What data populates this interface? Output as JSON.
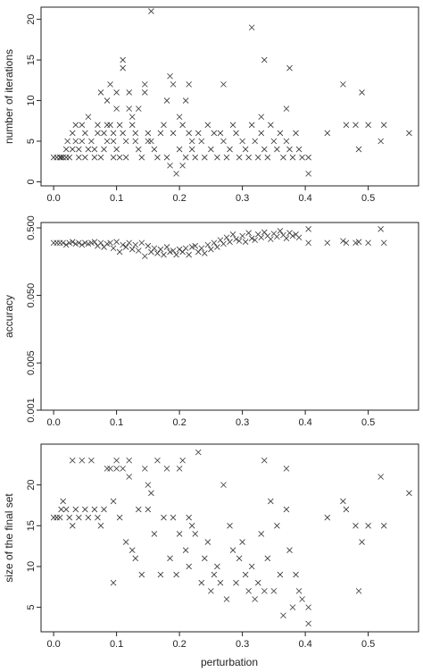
{
  "chart_data": [
    {
      "type": "scatter",
      "xlabel": "",
      "ylabel": "number of iterations",
      "xlim": [
        -0.02,
        0.58
      ],
      "ylim": [
        -0.5,
        21.5
      ],
      "yscale": "linear",
      "x_ticks": [
        "0.0",
        "0.1",
        "0.2",
        "0.3",
        "0.4",
        "0.5"
      ],
      "y_ticks": [
        "0",
        "5",
        "10",
        "15",
        "20"
      ],
      "marker": "x",
      "points": [
        [
          0.0,
          3
        ],
        [
          0.005,
          3
        ],
        [
          0.01,
          3
        ],
        [
          0.012,
          3
        ],
        [
          0.015,
          3
        ],
        [
          0.02,
          3
        ],
        [
          0.02,
          4
        ],
        [
          0.022,
          5
        ],
        [
          0.025,
          3
        ],
        [
          0.03,
          4
        ],
        [
          0.03,
          6
        ],
        [
          0.035,
          7
        ],
        [
          0.035,
          5
        ],
        [
          0.04,
          3
        ],
        [
          0.04,
          4
        ],
        [
          0.045,
          7
        ],
        [
          0.045,
          5
        ],
        [
          0.05,
          3
        ],
        [
          0.05,
          6
        ],
        [
          0.055,
          8
        ],
        [
          0.055,
          4
        ],
        [
          0.06,
          5
        ],
        [
          0.065,
          3
        ],
        [
          0.065,
          4
        ],
        [
          0.07,
          6
        ],
        [
          0.07,
          7
        ],
        [
          0.075,
          3
        ],
        [
          0.075,
          11
        ],
        [
          0.08,
          6
        ],
        [
          0.08,
          4
        ],
        [
          0.085,
          10
        ],
        [
          0.085,
          7
        ],
        [
          0.085,
          5
        ],
        [
          0.09,
          12
        ],
        [
          0.09,
          7
        ],
        [
          0.095,
          3
        ],
        [
          0.095,
          6
        ],
        [
          0.095,
          5
        ],
        [
          0.1,
          4
        ],
        [
          0.1,
          9
        ],
        [
          0.1,
          11
        ],
        [
          0.105,
          3
        ],
        [
          0.105,
          7
        ],
        [
          0.11,
          14
        ],
        [
          0.11,
          15
        ],
        [
          0.11,
          6
        ],
        [
          0.115,
          3
        ],
        [
          0.115,
          5
        ],
        [
          0.12,
          9
        ],
        [
          0.12,
          11
        ],
        [
          0.125,
          8
        ],
        [
          0.125,
          7
        ],
        [
          0.13,
          5
        ],
        [
          0.13,
          6
        ],
        [
          0.135,
          9
        ],
        [
          0.135,
          4
        ],
        [
          0.14,
          3
        ],
        [
          0.145,
          11
        ],
        [
          0.145,
          12
        ],
        [
          0.15,
          5
        ],
        [
          0.15,
          6
        ],
        [
          0.155,
          21
        ],
        [
          0.155,
          5
        ],
        [
          0.16,
          4
        ],
        [
          0.165,
          3
        ],
        [
          0.17,
          6
        ],
        [
          0.175,
          7
        ],
        [
          0.18,
          10
        ],
        [
          0.18,
          3
        ],
        [
          0.185,
          13
        ],
        [
          0.185,
          2
        ],
        [
          0.19,
          12
        ],
        [
          0.19,
          6
        ],
        [
          0.195,
          1
        ],
        [
          0.2,
          8
        ],
        [
          0.2,
          4
        ],
        [
          0.205,
          7
        ],
        [
          0.205,
          2
        ],
        [
          0.21,
          10
        ],
        [
          0.21,
          3
        ],
        [
          0.215,
          12
        ],
        [
          0.215,
          6
        ],
        [
          0.22,
          5
        ],
        [
          0.22,
          4
        ],
        [
          0.225,
          3
        ],
        [
          0.23,
          6
        ],
        [
          0.235,
          5
        ],
        [
          0.24,
          3
        ],
        [
          0.245,
          7
        ],
        [
          0.25,
          4
        ],
        [
          0.255,
          6
        ],
        [
          0.26,
          3
        ],
        [
          0.265,
          6
        ],
        [
          0.27,
          12
        ],
        [
          0.27,
          5
        ],
        [
          0.275,
          3
        ],
        [
          0.28,
          4
        ],
        [
          0.285,
          7
        ],
        [
          0.29,
          6
        ],
        [
          0.295,
          3
        ],
        [
          0.3,
          5
        ],
        [
          0.305,
          4
        ],
        [
          0.31,
          3
        ],
        [
          0.315,
          19
        ],
        [
          0.315,
          7
        ],
        [
          0.32,
          5
        ],
        [
          0.325,
          3
        ],
        [
          0.33,
          8
        ],
        [
          0.33,
          6
        ],
        [
          0.335,
          15
        ],
        [
          0.335,
          4
        ],
        [
          0.34,
          3
        ],
        [
          0.345,
          7
        ],
        [
          0.35,
          5
        ],
        [
          0.355,
          4
        ],
        [
          0.36,
          6
        ],
        [
          0.365,
          3
        ],
        [
          0.37,
          9
        ],
        [
          0.37,
          5
        ],
        [
          0.375,
          14
        ],
        [
          0.375,
          4
        ],
        [
          0.38,
          3
        ],
        [
          0.385,
          6
        ],
        [
          0.39,
          4
        ],
        [
          0.395,
          3
        ],
        [
          0.405,
          1
        ],
        [
          0.405,
          3
        ],
        [
          0.435,
          6
        ],
        [
          0.46,
          12
        ],
        [
          0.465,
          7
        ],
        [
          0.48,
          7
        ],
        [
          0.485,
          4
        ],
        [
          0.49,
          11
        ],
        [
          0.5,
          7
        ],
        [
          0.52,
          5
        ],
        [
          0.525,
          7
        ],
        [
          0.565,
          6
        ]
      ]
    },
    {
      "type": "scatter",
      "xlabel": "",
      "ylabel": "accuracy",
      "xlim": [
        -0.02,
        0.58
      ],
      "ylim": [
        0.001,
        0.6
      ],
      "yscale": "log",
      "x_ticks": [
        "0.0",
        "0.1",
        "0.2",
        "0.3",
        "0.4",
        "0.5"
      ],
      "y_ticks": [
        "0.001",
        "0.005",
        "0.050",
        "0.500"
      ],
      "y_tick_values": [
        0.001,
        0.005,
        0.05,
        0.5
      ],
      "marker": "x",
      "points": [
        [
          0.0,
          0.3
        ],
        [
          0.005,
          0.3
        ],
        [
          0.01,
          0.3
        ],
        [
          0.015,
          0.3
        ],
        [
          0.02,
          0.28
        ],
        [
          0.025,
          0.3
        ],
        [
          0.03,
          0.31
        ],
        [
          0.035,
          0.29
        ],
        [
          0.04,
          0.3
        ],
        [
          0.045,
          0.28
        ],
        [
          0.05,
          0.3
        ],
        [
          0.055,
          0.29
        ],
        [
          0.06,
          0.3
        ],
        [
          0.065,
          0.31
        ],
        [
          0.07,
          0.27
        ],
        [
          0.075,
          0.3
        ],
        [
          0.08,
          0.26
        ],
        [
          0.085,
          0.29
        ],
        [
          0.09,
          0.3
        ],
        [
          0.095,
          0.25
        ],
        [
          0.1,
          0.31
        ],
        [
          0.105,
          0.22
        ],
        [
          0.11,
          0.28
        ],
        [
          0.115,
          0.26
        ],
        [
          0.12,
          0.3
        ],
        [
          0.125,
          0.24
        ],
        [
          0.13,
          0.28
        ],
        [
          0.135,
          0.23
        ],
        [
          0.14,
          0.3
        ],
        [
          0.145,
          0.19
        ],
        [
          0.15,
          0.27
        ],
        [
          0.155,
          0.22
        ],
        [
          0.16,
          0.25
        ],
        [
          0.165,
          0.21
        ],
        [
          0.17,
          0.24
        ],
        [
          0.175,
          0.2
        ],
        [
          0.18,
          0.26
        ],
        [
          0.185,
          0.22
        ],
        [
          0.19,
          0.23
        ],
        [
          0.195,
          0.2
        ],
        [
          0.2,
          0.24
        ],
        [
          0.205,
          0.22
        ],
        [
          0.21,
          0.25
        ],
        [
          0.215,
          0.2
        ],
        [
          0.22,
          0.26
        ],
        [
          0.225,
          0.27
        ],
        [
          0.23,
          0.22
        ],
        [
          0.235,
          0.25
        ],
        [
          0.24,
          0.21
        ],
        [
          0.245,
          0.28
        ],
        [
          0.25,
          0.24
        ],
        [
          0.255,
          0.3
        ],
        [
          0.26,
          0.26
        ],
        [
          0.265,
          0.33
        ],
        [
          0.27,
          0.29
        ],
        [
          0.275,
          0.36
        ],
        [
          0.28,
          0.31
        ],
        [
          0.285,
          0.4
        ],
        [
          0.29,
          0.34
        ],
        [
          0.295,
          0.32
        ],
        [
          0.3,
          0.38
        ],
        [
          0.305,
          0.31
        ],
        [
          0.31,
          0.42
        ],
        [
          0.315,
          0.35
        ],
        [
          0.32,
          0.33
        ],
        [
          0.325,
          0.4
        ],
        [
          0.33,
          0.36
        ],
        [
          0.335,
          0.43
        ],
        [
          0.34,
          0.38
        ],
        [
          0.345,
          0.34
        ],
        [
          0.35,
          0.41
        ],
        [
          0.355,
          0.37
        ],
        [
          0.36,
          0.45
        ],
        [
          0.365,
          0.39
        ],
        [
          0.37,
          0.35
        ],
        [
          0.375,
          0.42
        ],
        [
          0.38,
          0.38
        ],
        [
          0.385,
          0.4
        ],
        [
          0.39,
          0.36
        ],
        [
          0.405,
          0.3
        ],
        [
          0.405,
          0.48
        ],
        [
          0.435,
          0.3
        ],
        [
          0.46,
          0.32
        ],
        [
          0.465,
          0.3
        ],
        [
          0.48,
          0.3
        ],
        [
          0.485,
          0.31
        ],
        [
          0.5,
          0.3
        ],
        [
          0.52,
          0.48
        ],
        [
          0.525,
          0.3
        ]
      ]
    },
    {
      "type": "scatter",
      "xlabel": "perturbation",
      "ylabel": "size of the final set",
      "xlim": [
        -0.02,
        0.58
      ],
      "ylim": [
        2,
        25
      ],
      "yscale": "linear",
      "x_ticks": [
        "0.0",
        "0.1",
        "0.2",
        "0.3",
        "0.4",
        "0.5"
      ],
      "y_ticks": [
        "5",
        "10",
        "15",
        "20"
      ],
      "marker": "x",
      "points": [
        [
          0.0,
          16
        ],
        [
          0.005,
          16
        ],
        [
          0.01,
          16
        ],
        [
          0.012,
          17
        ],
        [
          0.015,
          18
        ],
        [
          0.02,
          17
        ],
        [
          0.025,
          16
        ],
        [
          0.03,
          15
        ],
        [
          0.03,
          23
        ],
        [
          0.035,
          17
        ],
        [
          0.04,
          16
        ],
        [
          0.045,
          23
        ],
        [
          0.05,
          17
        ],
        [
          0.055,
          16
        ],
        [
          0.06,
          23
        ],
        [
          0.065,
          17
        ],
        [
          0.07,
          16
        ],
        [
          0.075,
          15
        ],
        [
          0.08,
          17
        ],
        [
          0.085,
          22
        ],
        [
          0.09,
          22
        ],
        [
          0.095,
          8
        ],
        [
          0.095,
          18
        ],
        [
          0.1,
          23
        ],
        [
          0.1,
          22
        ],
        [
          0.105,
          16
        ],
        [
          0.11,
          22
        ],
        [
          0.115,
          13
        ],
        [
          0.12,
          23
        ],
        [
          0.12,
          21
        ],
        [
          0.125,
          12
        ],
        [
          0.13,
          11
        ],
        [
          0.135,
          17
        ],
        [
          0.14,
          9
        ],
        [
          0.145,
          22
        ],
        [
          0.15,
          17
        ],
        [
          0.15,
          20
        ],
        [
          0.155,
          19
        ],
        [
          0.16,
          14
        ],
        [
          0.165,
          23
        ],
        [
          0.17,
          9
        ],
        [
          0.175,
          16
        ],
        [
          0.18,
          22
        ],
        [
          0.185,
          11
        ],
        [
          0.19,
          16
        ],
        [
          0.195,
          9
        ],
        [
          0.2,
          14
        ],
        [
          0.2,
          22
        ],
        [
          0.205,
          23
        ],
        [
          0.21,
          12
        ],
        [
          0.215,
          16
        ],
        [
          0.215,
          10
        ],
        [
          0.22,
          15
        ],
        [
          0.225,
          14
        ],
        [
          0.23,
          24
        ],
        [
          0.235,
          8
        ],
        [
          0.24,
          11
        ],
        [
          0.245,
          13
        ],
        [
          0.25,
          7
        ],
        [
          0.255,
          9
        ],
        [
          0.26,
          10
        ],
        [
          0.265,
          8
        ],
        [
          0.27,
          20
        ],
        [
          0.275,
          6
        ],
        [
          0.28,
          15
        ],
        [
          0.285,
          12
        ],
        [
          0.29,
          8
        ],
        [
          0.295,
          11
        ],
        [
          0.3,
          13
        ],
        [
          0.305,
          9
        ],
        [
          0.31,
          7
        ],
        [
          0.315,
          10
        ],
        [
          0.32,
          6
        ],
        [
          0.325,
          8
        ],
        [
          0.33,
          14
        ],
        [
          0.335,
          23
        ],
        [
          0.335,
          7
        ],
        [
          0.34,
          11
        ],
        [
          0.345,
          18
        ],
        [
          0.35,
          7
        ],
        [
          0.355,
          15
        ],
        [
          0.36,
          9
        ],
        [
          0.365,
          4
        ],
        [
          0.37,
          17
        ],
        [
          0.37,
          22
        ],
        [
          0.375,
          12
        ],
        [
          0.38,
          5
        ],
        [
          0.385,
          9
        ],
        [
          0.39,
          7
        ],
        [
          0.395,
          6
        ],
        [
          0.405,
          3
        ],
        [
          0.405,
          5
        ],
        [
          0.435,
          16
        ],
        [
          0.46,
          18
        ],
        [
          0.465,
          17
        ],
        [
          0.48,
          15
        ],
        [
          0.485,
          7
        ],
        [
          0.49,
          13
        ],
        [
          0.5,
          15
        ],
        [
          0.52,
          21
        ],
        [
          0.525,
          15
        ],
        [
          0.565,
          19
        ]
      ]
    }
  ]
}
